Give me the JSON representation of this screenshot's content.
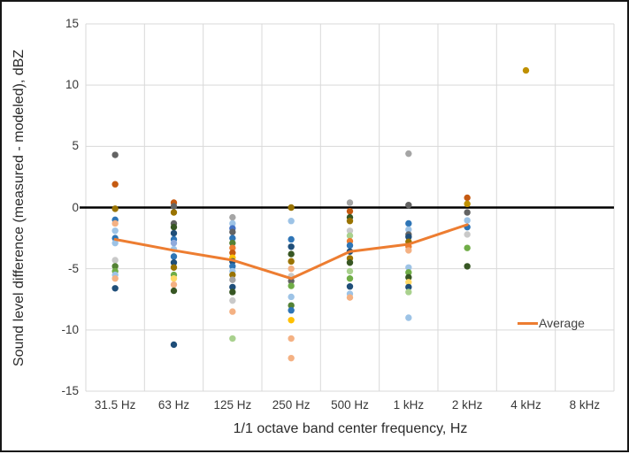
{
  "window": {
    "background": "#FFFFFF",
    "border_color": "#161616"
  },
  "legend": {
    "label": "Average",
    "color": "#ED7D31"
  },
  "chart_data": {
    "type": "scatter",
    "title": "",
    "xlabel": "1/1 octave band center frequency, Hz",
    "ylabel": "Sound level difference (measured - modeled), dBZ",
    "categories": [
      "31.5 Hz",
      "63 Hz",
      "125 Hz",
      "250 Hz",
      "500 Hz",
      "1 kHz",
      "2 kHz",
      "4 kHz",
      "8 kHz"
    ],
    "ylim": [
      -15,
      15
    ],
    "yticks": [
      15,
      10,
      5,
      0,
      -5,
      -10,
      -15
    ],
    "grid": true,
    "gridline_color": "#D9D9D9",
    "zero_line_color": "#000000",
    "legend_position": "right-middle",
    "points_by_category": [
      {
        "category": "31.5 Hz",
        "points": [
          {
            "v": 4.3,
            "c": "#636363"
          },
          {
            "v": 1.9,
            "c": "#C55A11"
          },
          {
            "v": -0.1,
            "c": "#997300"
          },
          {
            "v": -1.0,
            "c": "#2E75B6"
          },
          {
            "v": -1.3,
            "c": "#F4B183"
          },
          {
            "v": -1.9,
            "c": "#9DC3E6"
          },
          {
            "v": -2.5,
            "c": "#2E75B6"
          },
          {
            "v": -2.9,
            "c": "#9DC3E6"
          },
          {
            "v": -4.3,
            "c": "#C9C9C9"
          },
          {
            "v": -4.8,
            "c": "#548235"
          },
          {
            "v": -5.2,
            "c": "#70AD47"
          },
          {
            "v": -5.5,
            "c": "#9DC3E6"
          },
          {
            "v": -5.8,
            "c": "#F4B183"
          },
          {
            "v": -6.6,
            "c": "#1F4E79"
          }
        ]
      },
      {
        "category": "63 Hz",
        "points": [
          {
            "v": 0.4,
            "c": "#C55A11"
          },
          {
            "v": 0.1,
            "c": "#636363"
          },
          {
            "v": -0.4,
            "c": "#997300"
          },
          {
            "v": -1.3,
            "c": "#636363"
          },
          {
            "v": -1.6,
            "c": "#375623"
          },
          {
            "v": -2.1,
            "c": "#1F4E79"
          },
          {
            "v": -2.6,
            "c": "#2E75B6"
          },
          {
            "v": -2.9,
            "c": "#8FAADC"
          },
          {
            "v": -3.4,
            "c": "#9DC3E6"
          },
          {
            "v": -4.0,
            "c": "#2E75B6"
          },
          {
            "v": -4.5,
            "c": "#1F4E79"
          },
          {
            "v": -4.9,
            "c": "#997300"
          },
          {
            "v": -5.5,
            "c": "#70AD47"
          },
          {
            "v": -5.8,
            "c": "#FFD966"
          },
          {
            "v": -6.3,
            "c": "#F4B183"
          },
          {
            "v": -6.8,
            "c": "#375623"
          },
          {
            "v": -11.2,
            "c": "#1F4E79"
          }
        ]
      },
      {
        "category": "125 Hz",
        "points": [
          {
            "v": -0.8,
            "c": "#A5A5A5"
          },
          {
            "v": -1.3,
            "c": "#9DC3E6"
          },
          {
            "v": -1.7,
            "c": "#4472C4"
          },
          {
            "v": -2.0,
            "c": "#636363"
          },
          {
            "v": -2.5,
            "c": "#2E75B6"
          },
          {
            "v": -2.9,
            "c": "#548235"
          },
          {
            "v": -3.3,
            "c": "#ED7D31"
          },
          {
            "v": -3.7,
            "c": "#C55A11"
          },
          {
            "v": -4.1,
            "c": "#FFC000"
          },
          {
            "v": -4.4,
            "c": "#1F4E79"
          },
          {
            "v": -4.8,
            "c": "#2E75B6"
          },
          {
            "v": -5.2,
            "c": "#9DC3E6"
          },
          {
            "v": -5.5,
            "c": "#997300"
          },
          {
            "v": -5.9,
            "c": "#A5A5A5"
          },
          {
            "v": -6.5,
            "c": "#1F4E79"
          },
          {
            "v": -6.9,
            "c": "#375623"
          },
          {
            "v": -7.6,
            "c": "#C9C9C9"
          },
          {
            "v": -8.5,
            "c": "#F4B183"
          },
          {
            "v": -10.7,
            "c": "#A9D18E"
          }
        ]
      },
      {
        "category": "250 Hz",
        "points": [
          {
            "v": 0.0,
            "c": "#997300"
          },
          {
            "v": -1.1,
            "c": "#9DC3E6"
          },
          {
            "v": -2.6,
            "c": "#2E75B6"
          },
          {
            "v": -3.2,
            "c": "#1F4E79"
          },
          {
            "v": -3.8,
            "c": "#375623"
          },
          {
            "v": -4.4,
            "c": "#997300"
          },
          {
            "v": -5.0,
            "c": "#F4B183"
          },
          {
            "v": -5.6,
            "c": "#C9C9C9"
          },
          {
            "v": -6.0,
            "c": "#636363"
          },
          {
            "v": -6.4,
            "c": "#70AD47"
          },
          {
            "v": -7.3,
            "c": "#9DC3E6"
          },
          {
            "v": -8.0,
            "c": "#548235"
          },
          {
            "v": -8.4,
            "c": "#2E75B6"
          },
          {
            "v": -9.2,
            "c": "#FFC000"
          },
          {
            "v": -10.7,
            "c": "#F4B183"
          },
          {
            "v": -12.3,
            "c": "#F4B183"
          }
        ]
      },
      {
        "category": "500 Hz",
        "points": [
          {
            "v": 0.4,
            "c": "#A5A5A5"
          },
          {
            "v": -0.3,
            "c": "#C55A11"
          },
          {
            "v": -0.8,
            "c": "#375623"
          },
          {
            "v": -1.1,
            "c": "#997300"
          },
          {
            "v": -1.9,
            "c": "#C9C9C9"
          },
          {
            "v": -2.3,
            "c": "#A9D18E"
          },
          {
            "v": -2.75,
            "c": "#ED7D31"
          },
          {
            "v": -3.1,
            "c": "#2E75B6"
          },
          {
            "v": -3.6,
            "c": "#1F4E79"
          },
          {
            "v": -4.15,
            "c": "#997300"
          },
          {
            "v": -4.5,
            "c": "#375623"
          },
          {
            "v": -5.2,
            "c": "#A9D18E"
          },
          {
            "v": -5.8,
            "c": "#70AD47"
          },
          {
            "v": -6.45,
            "c": "#1F4E79"
          },
          {
            "v": -7.05,
            "c": "#9DC3E6"
          },
          {
            "v": -7.35,
            "c": "#F4B183"
          }
        ]
      },
      {
        "category": "1 kHz",
        "points": [
          {
            "v": 4.4,
            "c": "#A5A5A5"
          },
          {
            "v": 0.2,
            "c": "#636363"
          },
          {
            "v": -1.3,
            "c": "#2E75B6"
          },
          {
            "v": -1.8,
            "c": "#9DC3E6"
          },
          {
            "v": -2.2,
            "c": "#636363"
          },
          {
            "v": -2.4,
            "c": "#1F4E79"
          },
          {
            "v": -2.8,
            "c": "#997300"
          },
          {
            "v": -3.2,
            "c": "#ED7D31"
          },
          {
            "v": -3.5,
            "c": "#F4B183"
          },
          {
            "v": -4.9,
            "c": "#9DC3E6"
          },
          {
            "v": -5.3,
            "c": "#70AD47"
          },
          {
            "v": -5.7,
            "c": "#375623"
          },
          {
            "v": -6.1,
            "c": "#FFD966"
          },
          {
            "v": -6.5,
            "c": "#1F4E79"
          },
          {
            "v": -6.9,
            "c": "#A9D18E"
          },
          {
            "v": -9.0,
            "c": "#9DC3E6"
          }
        ]
      },
      {
        "category": "2 kHz",
        "points": [
          {
            "v": 0.8,
            "c": "#C55A11"
          },
          {
            "v": 0.3,
            "c": "#BF9000"
          },
          {
            "v": -0.4,
            "c": "#636363"
          },
          {
            "v": -1.05,
            "c": "#9DC3E6"
          },
          {
            "v": -1.6,
            "c": "#2E75B6"
          },
          {
            "v": -2.2,
            "c": "#C9C9C9"
          },
          {
            "v": -3.3,
            "c": "#70AD47"
          },
          {
            "v": -4.8,
            "c": "#375623"
          }
        ]
      },
      {
        "category": "4 kHz",
        "points": [
          {
            "v": 11.2,
            "c": "#BF9000"
          }
        ]
      },
      {
        "category": "8 kHz",
        "points": []
      }
    ],
    "average_series": {
      "name": "Average",
      "color": "#ED7D31",
      "values": [
        -2.6,
        -3.5,
        -4.3,
        -5.8,
        -3.6,
        -3.0,
        -1.4
      ],
      "categories_covered": [
        "31.5 Hz",
        "63 Hz",
        "125 Hz",
        "250 Hz",
        "500 Hz",
        "1 kHz",
        "2 kHz"
      ]
    }
  }
}
